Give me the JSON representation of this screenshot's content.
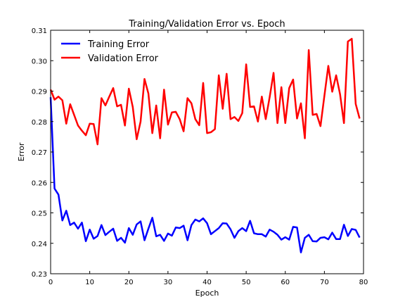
{
  "chart_data": {
    "type": "line",
    "title": "Training/Validation Error vs. Epoch",
    "xlabel": "Epoch",
    "ylabel": "Error",
    "xlim": [
      0,
      80
    ],
    "ylim": [
      0.23,
      0.31
    ],
    "xticks": [
      0,
      10,
      20,
      30,
      40,
      50,
      60,
      70,
      80
    ],
    "yticks": [
      0.23,
      0.24,
      0.25,
      0.26,
      0.27,
      0.28,
      0.29,
      0.3,
      0.31
    ],
    "xtick_labels": [
      "0",
      "10",
      "20",
      "30",
      "40",
      "50",
      "60",
      "70",
      "80"
    ],
    "ytick_labels": [
      "0.23",
      "0.24",
      "0.25",
      "0.26",
      "0.27",
      "0.28",
      "0.29",
      "0.30",
      "0.31"
    ],
    "grid": false,
    "legend_position": "top-left",
    "x": [
      0,
      1,
      2,
      3,
      4,
      5,
      6,
      7,
      8,
      9,
      10,
      11,
      12,
      13,
      14,
      15,
      16,
      17,
      18,
      19,
      20,
      21,
      22,
      23,
      24,
      25,
      26,
      27,
      28,
      29,
      30,
      31,
      32,
      33,
      34,
      35,
      36,
      37,
      38,
      39,
      40,
      41,
      42,
      43,
      44,
      45,
      46,
      47,
      48,
      49,
      50,
      51,
      52,
      53,
      54,
      55,
      56,
      57,
      58,
      59,
      60,
      61,
      62,
      63,
      64,
      65,
      66,
      67,
      68,
      69,
      70,
      71,
      72,
      73,
      74,
      75,
      76,
      77,
      78,
      79
    ],
    "series": [
      {
        "name": "Training Error",
        "color": "#0000ff",
        "values": [
          0.288,
          0.258,
          0.256,
          0.2475,
          0.2507,
          0.246,
          0.2468,
          0.2448,
          0.2468,
          0.2407,
          0.2445,
          0.2415,
          0.2424,
          0.246,
          0.2427,
          0.2438,
          0.2448,
          0.2408,
          0.2418,
          0.2402,
          0.245,
          0.2428,
          0.2462,
          0.2472,
          0.241,
          0.2448,
          0.2484,
          0.2423,
          0.2428,
          0.2408,
          0.2432,
          0.2425,
          0.2452,
          0.245,
          0.2458,
          0.241,
          0.246,
          0.2478,
          0.2472,
          0.2482,
          0.2466,
          0.243,
          0.244,
          0.245,
          0.2466,
          0.2465,
          0.2446,
          0.2418,
          0.244,
          0.245,
          0.244,
          0.2474,
          0.2433,
          0.243,
          0.243,
          0.2422,
          0.2445,
          0.2438,
          0.2428,
          0.2412,
          0.242,
          0.2412,
          0.2454,
          0.2452,
          0.237,
          0.2418,
          0.2428,
          0.2407,
          0.2406,
          0.2418,
          0.242,
          0.2413,
          0.2435,
          0.2414,
          0.2414,
          0.2461,
          0.2424,
          0.2447,
          0.2444,
          0.2419
        ]
      },
      {
        "name": "Validation Error",
        "color": "#ff0000",
        "values": [
          0.2905,
          0.2872,
          0.2882,
          0.287,
          0.2793,
          0.2857,
          0.2822,
          0.2787,
          0.277,
          0.2755,
          0.2793,
          0.2792,
          0.2725,
          0.2877,
          0.2853,
          0.2882,
          0.291,
          0.285,
          0.2855,
          0.2787,
          0.2908,
          0.2848,
          0.2742,
          0.28,
          0.294,
          0.2892,
          0.2762,
          0.2853,
          0.2745,
          0.2905,
          0.279,
          0.283,
          0.2832,
          0.2808,
          0.2768,
          0.2877,
          0.286,
          0.2808,
          0.2788,
          0.2927,
          0.2762,
          0.2765,
          0.2775,
          0.2952,
          0.2842,
          0.2957,
          0.2808,
          0.2815,
          0.2802,
          0.2828,
          0.2988,
          0.2848,
          0.285,
          0.28,
          0.2882,
          0.2808,
          0.288,
          0.296,
          0.2795,
          0.2913,
          0.2795,
          0.291,
          0.2938,
          0.281,
          0.286,
          0.2745,
          0.3035,
          0.2822,
          0.2825,
          0.2785,
          0.2885,
          0.2983,
          0.2898,
          0.2952,
          0.289,
          0.2795,
          0.3063,
          0.3072,
          0.2858,
          0.281
        ]
      }
    ]
  }
}
